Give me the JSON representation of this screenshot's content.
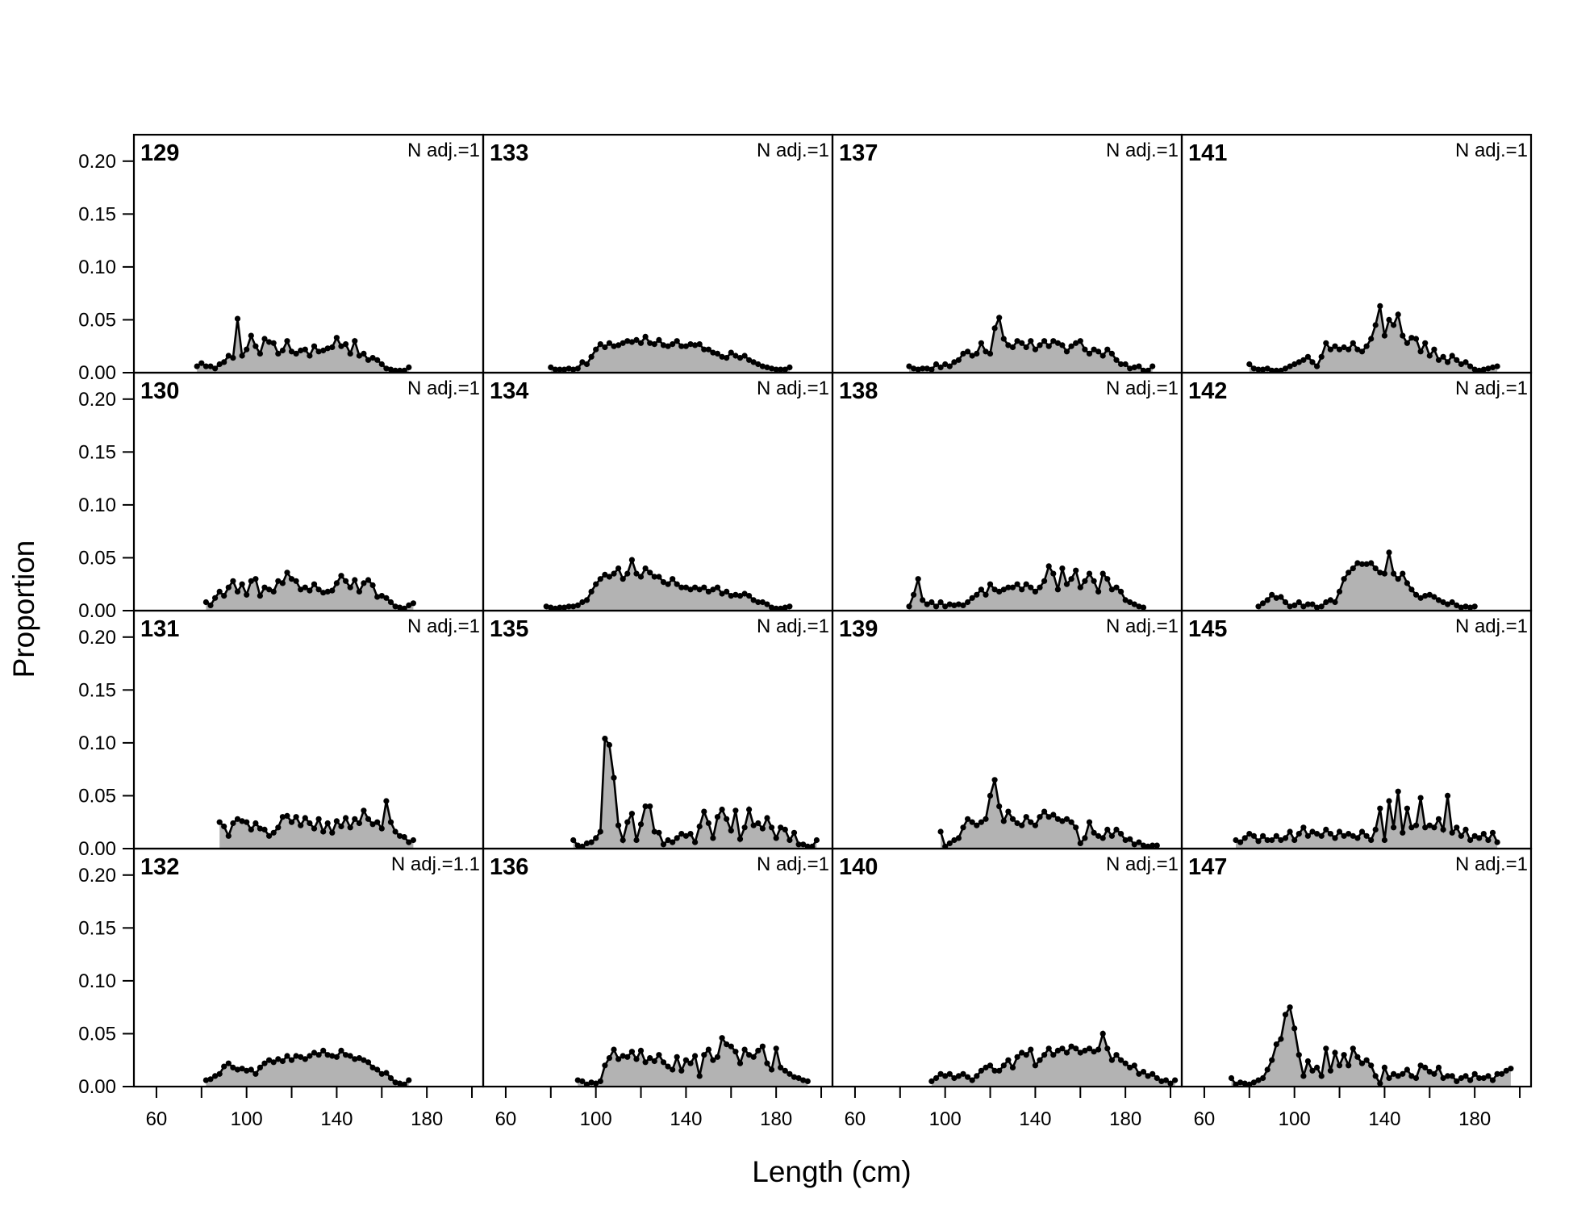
{
  "chart_data": {
    "type": "area",
    "xlabel": "Length (cm)",
    "ylabel": "Proportion",
    "xlim": [
      50,
      205
    ],
    "ylim": [
      0,
      0.225
    ],
    "x_ticks": [
      60,
      100,
      140,
      180
    ],
    "x_minor_ticks": [
      80,
      120,
      160,
      200
    ],
    "y_ticks": [
      "0.00",
      "0.05",
      "0.10",
      "0.15",
      "0.20"
    ],
    "grid": false,
    "layout": {
      "rows": 4,
      "cols": 4,
      "order": "column-major"
    },
    "colors": {
      "fill": "#b3b3b3",
      "line": "#000000",
      "point": "#000000"
    },
    "panels": [
      {
        "label": "129",
        "note": "N adj.=1",
        "x_start": 78,
        "x_step": 2,
        "values": [
          0.006,
          0.009,
          0.006,
          0.006,
          0.004,
          0.008,
          0.01,
          0.016,
          0.014,
          0.051,
          0.016,
          0.022,
          0.035,
          0.025,
          0.018,
          0.032,
          0.029,
          0.028,
          0.018,
          0.021,
          0.03,
          0.02,
          0.018,
          0.021,
          0.022,
          0.016,
          0.025,
          0.02,
          0.021,
          0.023,
          0.024,
          0.033,
          0.025,
          0.027,
          0.018,
          0.03,
          0.016,
          0.018,
          0.012,
          0.014,
          0.012,
          0.008,
          0.004,
          0.003,
          0.002,
          0.002,
          0.002,
          0.005
        ]
      },
      {
        "label": "130",
        "note": "N adj.=1",
        "x_start": 82,
        "x_step": 2,
        "values": [
          0.008,
          0.005,
          0.012,
          0.018,
          0.014,
          0.022,
          0.028,
          0.018,
          0.025,
          0.015,
          0.028,
          0.03,
          0.014,
          0.022,
          0.02,
          0.018,
          0.028,
          0.026,
          0.036,
          0.03,
          0.028,
          0.02,
          0.022,
          0.019,
          0.025,
          0.02,
          0.017,
          0.018,
          0.019,
          0.026,
          0.033,
          0.028,
          0.022,
          0.029,
          0.018,
          0.026,
          0.029,
          0.024,
          0.013,
          0.014,
          0.012,
          0.008,
          0.004,
          0.003,
          0.002,
          0.005,
          0.007
        ]
      },
      {
        "label": "131",
        "note": "N adj.=1",
        "x_start": 88,
        "x_step": 2,
        "values": [
          0.025,
          0.021,
          0.012,
          0.024,
          0.028,
          0.026,
          0.025,
          0.018,
          0.024,
          0.019,
          0.018,
          0.012,
          0.015,
          0.02,
          0.03,
          0.031,
          0.025,
          0.03,
          0.022,
          0.029,
          0.024,
          0.019,
          0.028,
          0.016,
          0.024,
          0.015,
          0.026,
          0.021,
          0.029,
          0.02,
          0.028,
          0.024,
          0.036,
          0.028,
          0.023,
          0.025,
          0.019,
          0.045,
          0.025,
          0.016,
          0.012,
          0.011,
          0.006,
          0.008
        ]
      },
      {
        "label": "132",
        "note": "N adj.=1.1",
        "x_start": 82,
        "x_step": 2,
        "values": [
          0.006,
          0.007,
          0.01,
          0.012,
          0.019,
          0.022,
          0.018,
          0.016,
          0.017,
          0.015,
          0.016,
          0.012,
          0.018,
          0.022,
          0.025,
          0.023,
          0.026,
          0.024,
          0.029,
          0.025,
          0.029,
          0.028,
          0.026,
          0.029,
          0.032,
          0.03,
          0.034,
          0.03,
          0.029,
          0.028,
          0.034,
          0.03,
          0.029,
          0.026,
          0.027,
          0.025,
          0.023,
          0.018,
          0.016,
          0.012,
          0.013,
          0.008,
          0.004,
          0.003,
          0.002,
          0.006
        ]
      },
      {
        "label": "133",
        "note": "N adj.=1",
        "x_start": 80,
        "x_step": 2,
        "values": [
          0.005,
          0.003,
          0.003,
          0.003,
          0.004,
          0.003,
          0.004,
          0.01,
          0.008,
          0.015,
          0.022,
          0.027,
          0.024,
          0.028,
          0.025,
          0.026,
          0.028,
          0.03,
          0.029,
          0.031,
          0.028,
          0.034,
          0.028,
          0.027,
          0.031,
          0.026,
          0.025,
          0.027,
          0.03,
          0.025,
          0.025,
          0.027,
          0.026,
          0.027,
          0.022,
          0.022,
          0.019,
          0.018,
          0.015,
          0.014,
          0.019,
          0.016,
          0.014,
          0.016,
          0.012,
          0.01,
          0.008,
          0.006,
          0.005,
          0.004,
          0.003,
          0.003,
          0.003,
          0.005
        ]
      },
      {
        "label": "134",
        "note": "N adj.=1",
        "x_start": 78,
        "x_step": 2,
        "values": [
          0.004,
          0.003,
          0.002,
          0.003,
          0.003,
          0.004,
          0.004,
          0.005,
          0.008,
          0.01,
          0.018,
          0.025,
          0.03,
          0.034,
          0.032,
          0.035,
          0.04,
          0.03,
          0.035,
          0.048,
          0.035,
          0.032,
          0.04,
          0.036,
          0.032,
          0.032,
          0.027,
          0.025,
          0.03,
          0.025,
          0.022,
          0.022,
          0.02,
          0.022,
          0.02,
          0.022,
          0.018,
          0.02,
          0.022,
          0.016,
          0.018,
          0.014,
          0.015,
          0.014,
          0.016,
          0.014,
          0.01,
          0.008,
          0.008,
          0.006,
          0.003,
          0.002,
          0.002,
          0.003,
          0.004
        ]
      },
      {
        "label": "135",
        "note": "N adj.=1",
        "x_start": 90,
        "x_step": 2,
        "values": [
          0.008,
          0.003,
          0.002,
          0.005,
          0.006,
          0.01,
          0.016,
          0.104,
          0.098,
          0.067,
          0.022,
          0.008,
          0.025,
          0.033,
          0.008,
          0.023,
          0.04,
          0.04,
          0.016,
          0.015,
          0.004,
          0.008,
          0.006,
          0.01,
          0.014,
          0.012,
          0.014,
          0.006,
          0.021,
          0.035,
          0.024,
          0.01,
          0.03,
          0.037,
          0.028,
          0.017,
          0.036,
          0.009,
          0.02,
          0.037,
          0.022,
          0.024,
          0.019,
          0.029,
          0.02,
          0.01,
          0.02,
          0.018,
          0.008,
          0.015,
          0.004,
          0.004,
          0.002,
          0.002,
          0.008
        ]
      },
      {
        "label": "136",
        "note": "N adj.=1",
        "x_start": 92,
        "x_step": 2,
        "values": [
          0.006,
          0.005,
          0.002,
          0.004,
          0.003,
          0.005,
          0.02,
          0.027,
          0.035,
          0.026,
          0.029,
          0.028,
          0.033,
          0.026,
          0.034,
          0.023,
          0.027,
          0.024,
          0.03,
          0.023,
          0.019,
          0.016,
          0.028,
          0.015,
          0.025,
          0.022,
          0.029,
          0.01,
          0.03,
          0.035,
          0.025,
          0.028,
          0.046,
          0.04,
          0.038,
          0.033,
          0.022,
          0.035,
          0.03,
          0.028,
          0.034,
          0.038,
          0.022,
          0.016,
          0.036,
          0.018,
          0.015,
          0.012,
          0.009,
          0.008,
          0.006,
          0.005
        ]
      },
      {
        "label": "137",
        "note": "N adj.=1",
        "x_start": 84,
        "x_step": 2,
        "values": [
          0.006,
          0.004,
          0.003,
          0.004,
          0.004,
          0.003,
          0.008,
          0.005,
          0.008,
          0.006,
          0.01,
          0.012,
          0.018,
          0.02,
          0.016,
          0.018,
          0.028,
          0.02,
          0.018,
          0.042,
          0.052,
          0.032,
          0.026,
          0.024,
          0.03,
          0.028,
          0.024,
          0.03,
          0.022,
          0.026,
          0.03,
          0.025,
          0.03,
          0.028,
          0.026,
          0.02,
          0.025,
          0.028,
          0.03,
          0.022,
          0.018,
          0.022,
          0.02,
          0.016,
          0.022,
          0.018,
          0.012,
          0.008,
          0.008,
          0.004,
          0.005,
          0.006,
          0.002,
          0.002,
          0.006
        ]
      },
      {
        "label": "138",
        "note": "N adj.=1",
        "x_start": 84,
        "x_step": 2,
        "values": [
          0.004,
          0.015,
          0.03,
          0.01,
          0.006,
          0.008,
          0.004,
          0.008,
          0.004,
          0.006,
          0.005,
          0.006,
          0.005,
          0.008,
          0.012,
          0.015,
          0.02,
          0.015,
          0.025,
          0.02,
          0.018,
          0.02,
          0.022,
          0.022,
          0.025,
          0.02,
          0.025,
          0.022,
          0.018,
          0.022,
          0.028,
          0.042,
          0.035,
          0.02,
          0.04,
          0.025,
          0.03,
          0.038,
          0.022,
          0.028,
          0.035,
          0.028,
          0.018,
          0.035,
          0.03,
          0.02,
          0.022,
          0.018,
          0.01,
          0.008,
          0.006,
          0.004,
          0.003
        ]
      },
      {
        "label": "139",
        "note": "N adj.=1",
        "x_start": 98,
        "x_step": 2,
        "values": [
          0.016,
          0.002,
          0.005,
          0.008,
          0.01,
          0.02,
          0.028,
          0.025,
          0.022,
          0.025,
          0.028,
          0.05,
          0.065,
          0.04,
          0.026,
          0.035,
          0.028,
          0.024,
          0.022,
          0.03,
          0.025,
          0.022,
          0.03,
          0.035,
          0.03,
          0.032,
          0.028,
          0.026,
          0.028,
          0.025,
          0.02,
          0.005,
          0.01,
          0.025,
          0.015,
          0.012,
          0.01,
          0.018,
          0.012,
          0.018,
          0.014,
          0.008,
          0.009,
          0.004,
          0.006,
          0.003,
          0.002,
          0.003,
          0.003
        ]
      },
      {
        "label": "140",
        "note": "N adj.=1",
        "x_start": 94,
        "x_step": 2,
        "values": [
          0.005,
          0.008,
          0.012,
          0.01,
          0.012,
          0.008,
          0.01,
          0.012,
          0.009,
          0.006,
          0.01,
          0.015,
          0.018,
          0.02,
          0.015,
          0.015,
          0.02,
          0.025,
          0.018,
          0.028,
          0.032,
          0.03,
          0.035,
          0.02,
          0.025,
          0.03,
          0.036,
          0.03,
          0.034,
          0.036,
          0.032,
          0.038,
          0.036,
          0.032,
          0.034,
          0.036,
          0.033,
          0.035,
          0.05,
          0.036,
          0.025,
          0.03,
          0.025,
          0.022,
          0.018,
          0.02,
          0.012,
          0.014,
          0.01,
          0.012,
          0.008,
          0.005,
          0.006,
          0.003,
          0.006
        ]
      },
      {
        "label": "141",
        "note": "N adj.=1",
        "x_start": 80,
        "x_step": 2,
        "values": [
          0.008,
          0.004,
          0.003,
          0.003,
          0.004,
          0.002,
          0.002,
          0.002,
          0.004,
          0.006,
          0.008,
          0.01,
          0.012,
          0.015,
          0.01,
          0.006,
          0.015,
          0.028,
          0.022,
          0.025,
          0.022,
          0.024,
          0.022,
          0.028,
          0.022,
          0.02,
          0.025,
          0.032,
          0.045,
          0.063,
          0.035,
          0.05,
          0.045,
          0.055,
          0.035,
          0.028,
          0.033,
          0.032,
          0.02,
          0.028,
          0.016,
          0.022,
          0.012,
          0.015,
          0.01,
          0.016,
          0.012,
          0.008,
          0.01,
          0.006,
          0.003,
          0.002,
          0.003,
          0.004,
          0.005,
          0.006
        ]
      },
      {
        "label": "142",
        "note": "N adj.=1",
        "x_start": 84,
        "x_step": 2,
        "values": [
          0.004,
          0.007,
          0.01,
          0.015,
          0.012,
          0.013,
          0.008,
          0.004,
          0.005,
          0.008,
          0.004,
          0.006,
          0.006,
          0.003,
          0.004,
          0.008,
          0.01,
          0.008,
          0.018,
          0.03,
          0.036,
          0.04,
          0.045,
          0.044,
          0.044,
          0.045,
          0.04,
          0.036,
          0.035,
          0.055,
          0.035,
          0.03,
          0.035,
          0.026,
          0.02,
          0.015,
          0.012,
          0.014,
          0.015,
          0.013,
          0.01,
          0.008,
          0.006,
          0.008,
          0.005,
          0.003,
          0.004,
          0.003,
          0.004
        ]
      },
      {
        "label": "145",
        "note": "N adj.=1",
        "x_start": 74,
        "x_step": 2,
        "values": [
          0.008,
          0.006,
          0.01,
          0.014,
          0.012,
          0.007,
          0.012,
          0.008,
          0.008,
          0.012,
          0.008,
          0.01,
          0.016,
          0.008,
          0.014,
          0.02,
          0.012,
          0.016,
          0.014,
          0.012,
          0.018,
          0.014,
          0.01,
          0.016,
          0.012,
          0.014,
          0.012,
          0.01,
          0.016,
          0.012,
          0.008,
          0.018,
          0.038,
          0.008,
          0.045,
          0.02,
          0.054,
          0.015,
          0.038,
          0.02,
          0.022,
          0.048,
          0.02,
          0.022,
          0.02,
          0.028,
          0.018,
          0.05,
          0.015,
          0.02,
          0.012,
          0.018,
          0.008,
          0.012,
          0.01,
          0.014,
          0.008,
          0.015,
          0.006
        ]
      },
      {
        "label": "147",
        "note": "N adj.=1",
        "x_start": 72,
        "x_step": 2,
        "values": [
          0.008,
          0.002,
          0.004,
          0.003,
          0.002,
          0.004,
          0.006,
          0.008,
          0.016,
          0.025,
          0.04,
          0.045,
          0.068,
          0.075,
          0.055,
          0.03,
          0.01,
          0.024,
          0.015,
          0.018,
          0.01,
          0.036,
          0.015,
          0.032,
          0.02,
          0.03,
          0.02,
          0.036,
          0.028,
          0.022,
          0.025,
          0.02,
          0.01,
          0.003,
          0.018,
          0.008,
          0.012,
          0.01,
          0.012,
          0.016,
          0.01,
          0.008,
          0.02,
          0.018,
          0.014,
          0.012,
          0.018,
          0.008,
          0.01,
          0.01,
          0.005,
          0.008,
          0.01,
          0.006,
          0.012,
          0.008,
          0.008,
          0.01,
          0.006,
          0.012,
          0.012,
          0.015,
          0.017
        ]
      }
    ]
  }
}
